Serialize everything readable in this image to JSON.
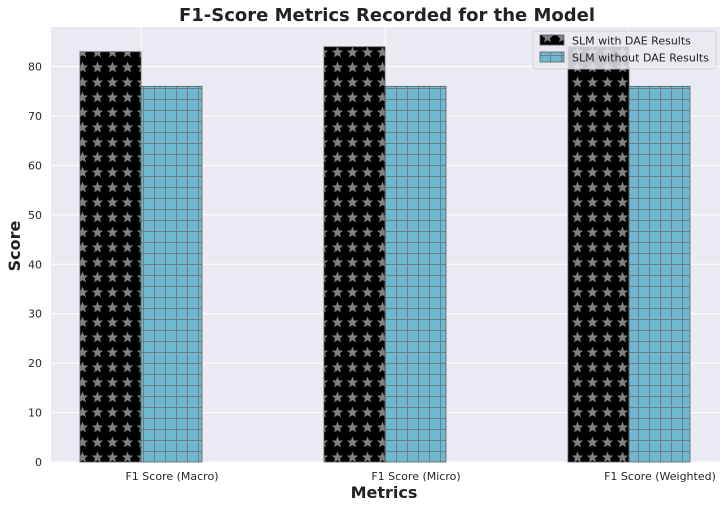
{
  "chart_data": {
    "type": "bar",
    "title": "F1-Score Metrics Recorded for the Model",
    "xlabel": "Metrics",
    "ylabel": "Score",
    "categories": [
      "F1 Score (Macro)",
      "F1 Score (Micro)",
      "F1 Score (Weighted)"
    ],
    "series": [
      {
        "name": "SLM with DAE Results",
        "values": [
          83,
          84,
          84
        ],
        "color": "#000000",
        "pattern": "star",
        "pattern_color": "#808080"
      },
      {
        "name": "SLM without DAE Results",
        "values": [
          76,
          76,
          76
        ],
        "color": "#6fb8d0",
        "pattern": "grid",
        "pattern_color": "#6f7f86"
      }
    ],
    "ylim": [
      0,
      88
    ],
    "yticks": [
      0,
      10,
      20,
      30,
      40,
      50,
      60,
      70,
      80
    ],
    "grid": true,
    "legend_position": "top-right",
    "background_color": "#eaeaf2"
  }
}
